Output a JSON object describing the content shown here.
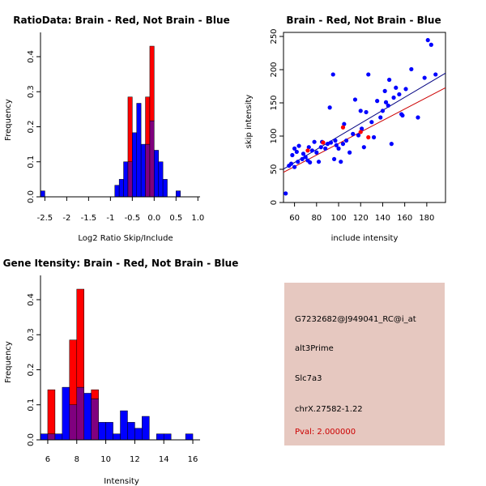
{
  "colors": {
    "red": "#ff0000",
    "blue": "#0000ff",
    "overlap": "#80007f",
    "fit_red": "#cc0000",
    "fit_blue": "#000080",
    "info_bg": "#e6c8c0",
    "pval": "#cc0000"
  },
  "chart_data": [
    {
      "id": "ratio",
      "type": "bar",
      "title": "RatioData: Brain - Red, Not Brain - Blue",
      "xlabel": "Log2 Ratio Skip/Include",
      "ylabel": "Frequency",
      "xlim": [
        -2.6,
        1.05
      ],
      "ylim": [
        0,
        0.43
      ],
      "xticks": [
        -2.5,
        -1.5,
        -0.5,
        0.5
      ],
      "xtick_labels": [
        "-2.5",
        "-1.5",
        "-0.5",
        "0.5"
      ],
      "xticks_top": [
        -2,
        -1,
        0,
        1
      ],
      "xtick_top_labels": [
        "-2",
        "-1",
        "0.0",
        "1.0"
      ],
      "yticks": [
        0,
        0.1,
        0.2,
        0.3,
        0.4
      ],
      "ytick_labels": [
        "0.0",
        "0.1",
        "0.2",
        "0.3",
        "0.4"
      ],
      "binwidth": 0.1,
      "series": [
        {
          "name": "Brain",
          "color": "red",
          "bins": [
            [
              -0.6,
              0.285
            ],
            [
              -0.2,
              0.285
            ],
            [
              -0.1,
              0.43
            ]
          ]
        },
        {
          "name": "Not Brain",
          "color": "blue",
          "bins": [
            [
              -2.6,
              0.017
            ],
            [
              -0.9,
              0.033
            ],
            [
              -0.8,
              0.05
            ],
            [
              -0.7,
              0.1
            ],
            [
              -0.6,
              0.1
            ],
            [
              -0.5,
              0.183
            ],
            [
              -0.4,
              0.267
            ],
            [
              -0.3,
              0.15
            ],
            [
              -0.2,
              0.15
            ],
            [
              -0.1,
              0.217
            ],
            [
              0.0,
              0.133
            ],
            [
              0.1,
              0.1
            ],
            [
              0.2,
              0.05
            ],
            [
              0.4,
              0.0
            ],
            [
              0.5,
              0.017
            ]
          ]
        }
      ]
    },
    {
      "id": "scatter",
      "type": "scatter",
      "title": "Brain - Red, Not Brain - Blue",
      "xlabel": "include intensity",
      "ylabel": "skip intensity",
      "xlim": [
        50,
        197
      ],
      "ylim": [
        0,
        250
      ],
      "xticks": [
        60,
        80,
        100,
        120,
        140,
        160,
        180
      ],
      "xtick_labels": [
        "60",
        "80",
        "100",
        "120",
        "140",
        "160",
        "180"
      ],
      "yticks": [
        0,
        50,
        100,
        150,
        200,
        250
      ],
      "ytick_labels": [
        "0",
        "50",
        "100",
        "150",
        "200",
        "250"
      ],
      "series": [
        {
          "name": "Not Brain",
          "color": "blue",
          "points": [
            [
              52,
              10
            ],
            [
              55,
              52
            ],
            [
              57,
              55
            ],
            [
              58,
              68
            ],
            [
              60,
              50
            ],
            [
              60,
              78
            ],
            [
              62,
              73
            ],
            [
              63,
              58
            ],
            [
              64,
              82
            ],
            [
              67,
              62
            ],
            [
              68,
              70
            ],
            [
              70,
              65
            ],
            [
              72,
              60
            ],
            [
              73,
              80
            ],
            [
              74,
              57
            ],
            [
              76,
              75
            ],
            [
              78,
              88
            ],
            [
              80,
              72
            ],
            [
              82,
              58
            ],
            [
              84,
              80
            ],
            [
              85,
              88
            ],
            [
              88,
              78
            ],
            [
              90,
              85
            ],
            [
              92,
              140
            ],
            [
              93,
              87
            ],
            [
              95,
              190
            ],
            [
              96,
              62
            ],
            [
              97,
              90
            ],
            [
              98,
              83
            ],
            [
              100,
              78
            ],
            [
              102,
              58
            ],
            [
              104,
              85
            ],
            [
              105,
              115
            ],
            [
              107,
              90
            ],
            [
              110,
              72
            ],
            [
              113,
              100
            ],
            [
              115,
              152
            ],
            [
              118,
              98
            ],
            [
              120,
              135
            ],
            [
              121,
              108
            ],
            [
              123,
              80
            ],
            [
              125,
              133
            ],
            [
              127,
              190
            ],
            [
              130,
              118
            ],
            [
              132,
              95
            ],
            [
              135,
              150
            ],
            [
              138,
              125
            ],
            [
              140,
              135
            ],
            [
              142,
              165
            ],
            [
              143,
              148
            ],
            [
              145,
              143
            ],
            [
              146,
              182
            ],
            [
              148,
              85
            ],
            [
              150,
              155
            ],
            [
              152,
              170
            ],
            [
              155,
              160
            ],
            [
              157,
              130
            ],
            [
              158,
              128
            ],
            [
              161,
              168
            ],
            [
              166,
              198
            ],
            [
              172,
              125
            ],
            [
              178,
              185
            ],
            [
              181,
              242
            ],
            [
              184,
              235
            ],
            [
              188,
              190
            ]
          ]
        },
        {
          "name": "Brain",
          "color": "red",
          "points": [
            [
              72,
              75
            ],
            [
              86,
              87
            ],
            [
              104,
              110
            ],
            [
              120,
              103
            ],
            [
              127,
              95
            ]
          ]
        }
      ],
      "fits": [
        {
          "name": "Not Brain",
          "color": "fit_blue",
          "x": [
            50,
            197
          ],
          "y": [
            47,
            192
          ]
        },
        {
          "name": "Brain",
          "color": "fit_red",
          "x": [
            50,
            197
          ],
          "y": [
            42,
            170
          ]
        }
      ]
    },
    {
      "id": "intensity",
      "type": "bar",
      "title": "Gene Itensity: Brain - Red, Not Brain - Blue",
      "xlabel": "Intensity",
      "ylabel": "Frequency",
      "xlim": [
        5.5,
        16.5
      ],
      "ylim": [
        0,
        0.43
      ],
      "xticks": [
        6,
        8,
        10,
        12,
        14,
        16
      ],
      "xtick_labels": [
        "6",
        "8",
        "10",
        "12",
        "14",
        "16"
      ],
      "yticks": [
        0,
        0.1,
        0.2,
        0.3,
        0.4
      ],
      "ytick_labels": [
        "0.0",
        "0.1",
        "0.2",
        "0.3",
        "0.4"
      ],
      "binwidth": 0.5,
      "series": [
        {
          "name": "Brain",
          "color": "red",
          "bins": [
            [
              6.0,
              0.143
            ],
            [
              7.5,
              0.285
            ],
            [
              8.0,
              0.43
            ],
            [
              9.0,
              0.143
            ]
          ]
        },
        {
          "name": "Not Brain",
          "color": "blue",
          "bins": [
            [
              5.5,
              0.017
            ],
            [
              6.0,
              0.017
            ],
            [
              6.5,
              0.017
            ],
            [
              7.0,
              0.15
            ],
            [
              7.5,
              0.1
            ],
            [
              8.0,
              0.15
            ],
            [
              8.5,
              0.133
            ],
            [
              9.0,
              0.117
            ],
            [
              9.5,
              0.05
            ],
            [
              10.0,
              0.05
            ],
            [
              10.5,
              0.017
            ],
            [
              11.0,
              0.083
            ],
            [
              11.5,
              0.05
            ],
            [
              12.0,
              0.033
            ],
            [
              12.5,
              0.067
            ],
            [
              13.5,
              0.017
            ],
            [
              14.0,
              0.017
            ],
            [
              15.5,
              0.017
            ]
          ]
        }
      ]
    }
  ],
  "info": {
    "probe_id": "G7232682@J949041_RC@i_at",
    "event_type": "alt3Prime",
    "gene": "Slc7a3",
    "location": "chrX.27582-1.22",
    "pval": "Pval: 2.000000"
  }
}
